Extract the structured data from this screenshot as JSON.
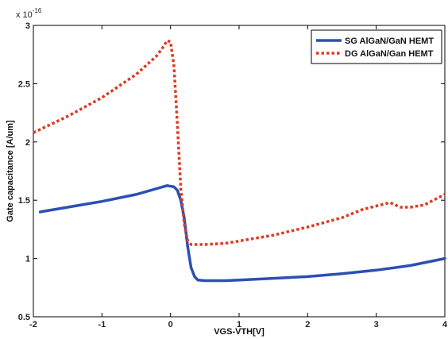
{
  "chart_data": {
    "type": "line",
    "title": "",
    "xlabel": "VGS-VTH[V]",
    "ylabel": "Gate capacitance [A/um]",
    "y_multiplier": {
      "base": "x 10",
      "exponent": "-16"
    },
    "xlim": [
      -2,
      4
    ],
    "ylim": [
      0.5,
      3
    ],
    "x_ticks": [
      -2,
      -1,
      0,
      1,
      2,
      3,
      4
    ],
    "x_tick_labels": [
      "-2",
      "-1",
      "0",
      "1",
      "2",
      "3",
      "4"
    ],
    "y_ticks": [
      0.5,
      1,
      1.5,
      2,
      2.5,
      3
    ],
    "y_tick_labels": [
      "0.5",
      "1",
      "1.5",
      "2",
      "2.5",
      "3"
    ],
    "grid": false,
    "legend_position": "top-right",
    "series": [
      {
        "name": "SG AlGaN/GaN HEMT",
        "color": "#2b4fb5",
        "style": "solid",
        "x": [
          -1.9,
          -1.5,
          -1.0,
          -0.5,
          -0.2,
          -0.05,
          0.05,
          0.1,
          0.15,
          0.2,
          0.25,
          0.3,
          0.35,
          0.4,
          0.5,
          0.8,
          1.0,
          1.5,
          2.0,
          2.5,
          3.0,
          3.5,
          4.0
        ],
        "y": [
          1.4,
          1.44,
          1.49,
          1.55,
          1.6,
          1.625,
          1.615,
          1.585,
          1.5,
          1.35,
          1.1,
          0.92,
          0.845,
          0.815,
          0.81,
          0.81,
          0.815,
          0.83,
          0.845,
          0.87,
          0.9,
          0.94,
          1.0
        ]
      },
      {
        "name": "DG AlGaN/Gan HEMT",
        "color": "#e03a22",
        "style": "dotted",
        "x": [
          -2.0,
          -1.5,
          -1.0,
          -0.5,
          -0.2,
          -0.1,
          -0.05,
          0.0,
          0.05,
          0.1,
          0.15,
          0.2,
          0.25,
          0.3,
          0.35,
          0.5,
          0.8,
          1.0,
          1.5,
          2.0,
          2.5,
          2.8,
          3.0,
          3.2,
          3.35,
          3.5,
          3.7,
          4.0
        ],
        "y": [
          2.08,
          2.22,
          2.38,
          2.58,
          2.74,
          2.82,
          2.87,
          2.86,
          2.65,
          2.15,
          1.6,
          1.3,
          1.15,
          1.12,
          1.12,
          1.12,
          1.13,
          1.15,
          1.2,
          1.27,
          1.35,
          1.42,
          1.45,
          1.48,
          1.44,
          1.44,
          1.46,
          1.55
        ]
      }
    ]
  }
}
